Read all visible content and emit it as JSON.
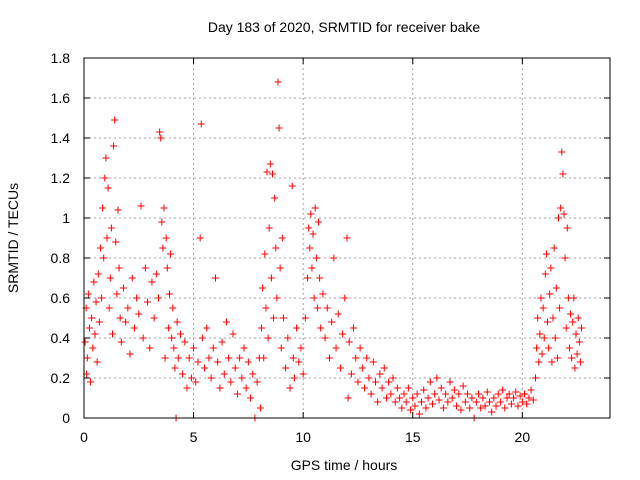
{
  "chart_data": {
    "type": "scatter",
    "title": "Day 183 of 2020, SRMTID for receiver bake",
    "xlabel": "GPS time / hours",
    "ylabel": "SRMTID / TECUs",
    "xlim": [
      0,
      24
    ],
    "ylim": [
      0,
      1.8
    ],
    "xticks": [
      0,
      5,
      10,
      15,
      20
    ],
    "xtick_labels": [
      "0",
      "5",
      "10",
      "15",
      "20"
    ],
    "yticks": [
      0,
      0.2,
      0.4,
      0.6,
      0.8,
      1,
      1.2,
      1.4,
      1.6,
      1.8
    ],
    "ytick_labels": [
      "0",
      "0.2",
      "0.4",
      "0.6",
      "0.8",
      "1",
      "1.2",
      "1.4",
      "1.6",
      "1.8"
    ],
    "grid": true,
    "marker": "+",
    "color": "#ff0000",
    "series": [
      {
        "name": "SRMTID",
        "points": [
          [
            0.05,
            0.38
          ],
          [
            0.1,
            0.55
          ],
          [
            0.12,
            0.22
          ],
          [
            0.15,
            0.3
          ],
          [
            0.2,
            0.62
          ],
          [
            0.25,
            0.45
          ],
          [
            0.3,
            0.18
          ],
          [
            0.35,
            0.5
          ],
          [
            0.4,
            0.35
          ],
          [
            0.45,
            0.68
          ],
          [
            0.5,
            0.42
          ],
          [
            0.55,
            0.58
          ],
          [
            0.6,
            0.28
          ],
          [
            0.65,
            0.72
          ],
          [
            0.7,
            0.48
          ],
          [
            0.75,
            0.85
          ],
          [
            0.8,
            0.6
          ],
          [
            0.85,
            1.05
          ],
          [
            0.9,
            0.8
          ],
          [
            0.95,
            1.2
          ],
          [
            1.0,
            1.3
          ],
          [
            1.05,
            0.9
          ],
          [
            1.1,
            1.15
          ],
          [
            1.15,
            0.55
          ],
          [
            1.2,
            0.7
          ],
          [
            1.25,
            0.95
          ],
          [
            1.3,
            0.42
          ],
          [
            1.35,
            1.36
          ],
          [
            1.4,
            1.49
          ],
          [
            1.45,
            0.88
          ],
          [
            1.5,
            0.62
          ],
          [
            1.55,
            1.04
          ],
          [
            1.6,
            0.75
          ],
          [
            1.65,
            0.5
          ],
          [
            1.7,
            0.38
          ],
          [
            1.8,
            0.65
          ],
          [
            1.9,
            0.48
          ],
          [
            2.0,
            0.55
          ],
          [
            2.1,
            0.32
          ],
          [
            2.2,
            0.7
          ],
          [
            2.3,
            0.45
          ],
          [
            2.4,
            0.6
          ],
          [
            2.5,
            0.52
          ],
          [
            2.6,
            1.06
          ],
          [
            2.7,
            0.4
          ],
          [
            2.8,
            0.75
          ],
          [
            2.9,
            0.58
          ],
          [
            3.0,
            0.35
          ],
          [
            3.1,
            0.68
          ],
          [
            3.2,
            0.5
          ],
          [
            3.3,
            0.72
          ],
          [
            3.4,
            0.6
          ],
          [
            3.45,
            1.43
          ],
          [
            3.5,
            1.4
          ],
          [
            3.55,
            0.98
          ],
          [
            3.6,
            0.85
          ],
          [
            3.65,
            1.05
          ],
          [
            3.7,
            0.3
          ],
          [
            3.75,
            0.9
          ],
          [
            3.8,
            0.75
          ],
          [
            3.85,
            0.45
          ],
          [
            3.9,
            0.62
          ],
          [
            3.95,
            0.82
          ],
          [
            4.0,
            0.4
          ],
          [
            4.05,
            0.55
          ],
          [
            4.1,
            0.35
          ],
          [
            4.15,
            0.25
          ],
          [
            4.2,
            0.0
          ],
          [
            4.25,
            0.48
          ],
          [
            4.3,
            0.3
          ],
          [
            4.4,
            0.42
          ],
          [
            4.5,
            0.22
          ],
          [
            4.6,
            0.38
          ],
          [
            4.7,
            0.15
          ],
          [
            4.8,
            0.3
          ],
          [
            4.9,
            0.2
          ],
          [
            5.0,
            0.35
          ],
          [
            5.1,
            0.18
          ],
          [
            5.2,
            0.28
          ],
          [
            5.3,
            0.9
          ],
          [
            5.35,
            1.47
          ],
          [
            5.4,
            0.4
          ],
          [
            5.5,
            0.25
          ],
          [
            5.6,
            0.45
          ],
          [
            5.7,
            0.3
          ],
          [
            5.8,
            0.2
          ],
          [
            5.9,
            0.35
          ],
          [
            6.0,
            0.7
          ],
          [
            6.1,
            0.28
          ],
          [
            6.2,
            0.15
          ],
          [
            6.3,
            0.38
          ],
          [
            6.4,
            0.22
          ],
          [
            6.5,
            0.48
          ],
          [
            6.6,
            0.3
          ],
          [
            6.7,
            0.18
          ],
          [
            6.8,
            0.42
          ],
          [
            6.9,
            0.25
          ],
          [
            7.0,
            0.12
          ],
          [
            7.1,
            0.3
          ],
          [
            7.2,
            0.2
          ],
          [
            7.3,
            0.35
          ],
          [
            7.4,
            0.15
          ],
          [
            7.5,
            0.28
          ],
          [
            7.6,
            0.1
          ],
          [
            7.7,
            0.22
          ],
          [
            7.8,
            0.0
          ],
          [
            7.9,
            0.18
          ],
          [
            8.0,
            0.3
          ],
          [
            8.05,
            0.05
          ],
          [
            8.1,
            0.45
          ],
          [
            8.15,
            0.65
          ],
          [
            8.2,
            0.3
          ],
          [
            8.25,
            0.82
          ],
          [
            8.3,
            0.55
          ],
          [
            8.35,
            1.23
          ],
          [
            8.4,
            0.4
          ],
          [
            8.45,
            0.95
          ],
          [
            8.5,
            1.27
          ],
          [
            8.55,
            0.7
          ],
          [
            8.6,
            1.22
          ],
          [
            8.65,
            0.5
          ],
          [
            8.7,
            1.1
          ],
          [
            8.75,
            0.85
          ],
          [
            8.8,
            0.6
          ],
          [
            8.85,
            1.68
          ],
          [
            8.9,
            1.45
          ],
          [
            8.95,
            0.75
          ],
          [
            9.0,
            0.35
          ],
          [
            9.05,
            0.9
          ],
          [
            9.1,
            0.5
          ],
          [
            9.2,
            0.25
          ],
          [
            9.3,
            0.4
          ],
          [
            9.4,
            0.15
          ],
          [
            9.5,
            1.16
          ],
          [
            9.55,
            0.3
          ],
          [
            9.6,
            0.2
          ],
          [
            9.7,
            0.45
          ],
          [
            9.8,
            0.28
          ],
          [
            9.9,
            0.35
          ],
          [
            10.0,
            0.22
          ],
          [
            10.1,
            0.5
          ],
          [
            10.2,
            0.7
          ],
          [
            10.25,
            0.95
          ],
          [
            10.3,
            0.85
          ],
          [
            10.35,
            1.02
          ],
          [
            10.4,
            0.75
          ],
          [
            10.45,
            0.92
          ],
          [
            10.5,
            0.6
          ],
          [
            10.55,
            1.05
          ],
          [
            10.6,
            0.8
          ],
          [
            10.65,
            0.55
          ],
          [
            10.7,
            0.98
          ],
          [
            10.75,
            0.7
          ],
          [
            10.8,
            0.45
          ],
          [
            10.9,
            0.62
          ],
          [
            11.0,
            0.4
          ],
          [
            11.1,
            0.55
          ],
          [
            11.2,
            0.3
          ],
          [
            11.3,
            0.48
          ],
          [
            11.4,
            0.8
          ],
          [
            11.5,
            0.35
          ],
          [
            11.6,
            0.52
          ],
          [
            11.7,
            0.25
          ],
          [
            11.8,
            0.42
          ],
          [
            11.9,
            0.6
          ],
          [
            12.0,
            0.9
          ],
          [
            12.05,
            0.1
          ],
          [
            12.1,
            0.38
          ],
          [
            12.2,
            0.22
          ],
          [
            12.3,
            0.45
          ],
          [
            12.4,
            0.3
          ],
          [
            12.5,
            0.18
          ],
          [
            12.6,
            0.35
          ],
          [
            12.7,
            0.25
          ],
          [
            12.8,
            0.15
          ],
          [
            12.9,
            0.3
          ],
          [
            13.0,
            0.2
          ],
          [
            13.1,
            0.12
          ],
          [
            13.2,
            0.28
          ],
          [
            13.3,
            0.18
          ],
          [
            13.4,
            0.08
          ],
          [
            13.5,
            0.22
          ],
          [
            13.6,
            0.15
          ],
          [
            13.7,
            0.25
          ],
          [
            13.8,
            0.1
          ],
          [
            13.9,
            0.18
          ],
          [
            14.0,
            0.12
          ],
          [
            14.1,
            0.2
          ],
          [
            14.2,
            0.08
          ],
          [
            14.3,
            0.15
          ],
          [
            14.4,
            0.1
          ],
          [
            14.5,
            0.05
          ],
          [
            14.6,
            0.12
          ],
          [
            14.7,
            0.08
          ],
          [
            14.8,
            0.15
          ],
          [
            14.9,
            0.04
          ],
          [
            15.0,
            0.1
          ],
          [
            15.1,
            0.06
          ],
          [
            15.2,
            0.12
          ],
          [
            15.3,
            0.02
          ],
          [
            15.4,
            0.08
          ],
          [
            15.5,
            0.14
          ],
          [
            15.6,
            0.05
          ],
          [
            15.7,
            0.1
          ],
          [
            15.8,
            0.18
          ],
          [
            15.9,
            0.07
          ],
          [
            16.0,
            0.12
          ],
          [
            16.1,
            0.2
          ],
          [
            16.2,
            0.09
          ],
          [
            16.3,
            0.15
          ],
          [
            16.4,
            0.05
          ],
          [
            16.5,
            0.12
          ],
          [
            16.6,
            0.08
          ],
          [
            16.7,
            0.18
          ],
          [
            16.8,
            0.1
          ],
          [
            16.9,
            0.14
          ],
          [
            17.0,
            0.06
          ],
          [
            17.1,
            0.12
          ],
          [
            17.2,
            0.04
          ],
          [
            17.3,
            0.16
          ],
          [
            17.4,
            0.08
          ],
          [
            17.5,
            0.12
          ],
          [
            17.6,
            0.05
          ],
          [
            17.7,
            0.1
          ],
          [
            17.8,
            0.0
          ],
          [
            17.9,
            0.08
          ],
          [
            18.0,
            0.12
          ],
          [
            18.1,
            0.05
          ],
          [
            18.2,
            0.1
          ],
          [
            18.3,
            0.06
          ],
          [
            18.4,
            0.13
          ],
          [
            18.5,
            0.08
          ],
          [
            18.6,
            0.03
          ],
          [
            18.7,
            0.1
          ],
          [
            18.8,
            0.06
          ],
          [
            18.9,
            0.12
          ],
          [
            19.0,
            0.08
          ],
          [
            19.1,
            0.14
          ],
          [
            19.2,
            0.05
          ],
          [
            19.3,
            0.1
          ],
          [
            19.4,
            0.12
          ],
          [
            19.5,
            0.07
          ],
          [
            19.6,
            0.1
          ],
          [
            19.7,
            0.13
          ],
          [
            19.8,
            0.06
          ],
          [
            19.9,
            0.11
          ],
          [
            20.0,
            0.08
          ],
          [
            20.1,
            0.12
          ],
          [
            20.2,
            0.07
          ],
          [
            20.3,
            0.1
          ],
          [
            20.4,
            0.14
          ],
          [
            20.5,
            0.09
          ],
          [
            20.6,
            0.2
          ],
          [
            20.65,
            0.35
          ],
          [
            20.7,
            0.5
          ],
          [
            20.75,
            0.28
          ],
          [
            20.8,
            0.42
          ],
          [
            20.85,
            0.6
          ],
          [
            20.9,
            0.32
          ],
          [
            20.95,
            0.55
          ],
          [
            21.0,
            0.4
          ],
          [
            21.05,
            0.72
          ],
          [
            21.1,
            0.82
          ],
          [
            21.15,
            0.48
          ],
          [
            21.2,
            0.35
          ],
          [
            21.25,
            0.62
          ],
          [
            21.3,
            0.75
          ],
          [
            21.35,
            0.28
          ],
          [
            21.4,
            0.5
          ],
          [
            21.45,
            0.85
          ],
          [
            21.5,
            0.4
          ],
          [
            21.55,
            0.65
          ],
          [
            21.6,
            0.3
          ],
          [
            21.65,
            1.0
          ],
          [
            21.7,
            0.55
          ],
          [
            21.75,
            1.05
          ],
          [
            21.8,
            1.33
          ],
          [
            21.85,
            1.22
          ],
          [
            21.9,
            1.02
          ],
          [
            21.95,
            0.8
          ],
          [
            22.0,
            0.45
          ],
          [
            22.05,
            0.95
          ],
          [
            22.1,
            0.6
          ],
          [
            22.15,
            0.35
          ],
          [
            22.2,
            0.52
          ],
          [
            22.25,
            0.3
          ],
          [
            22.3,
            0.48
          ],
          [
            22.35,
            0.6
          ],
          [
            22.4,
            0.25
          ],
          [
            22.45,
            0.42
          ],
          [
            22.5,
            0.32
          ],
          [
            22.55,
            0.5
          ],
          [
            22.6,
            0.38
          ],
          [
            22.65,
            0.28
          ],
          [
            22.7,
            0.45
          ]
        ]
      }
    ]
  }
}
